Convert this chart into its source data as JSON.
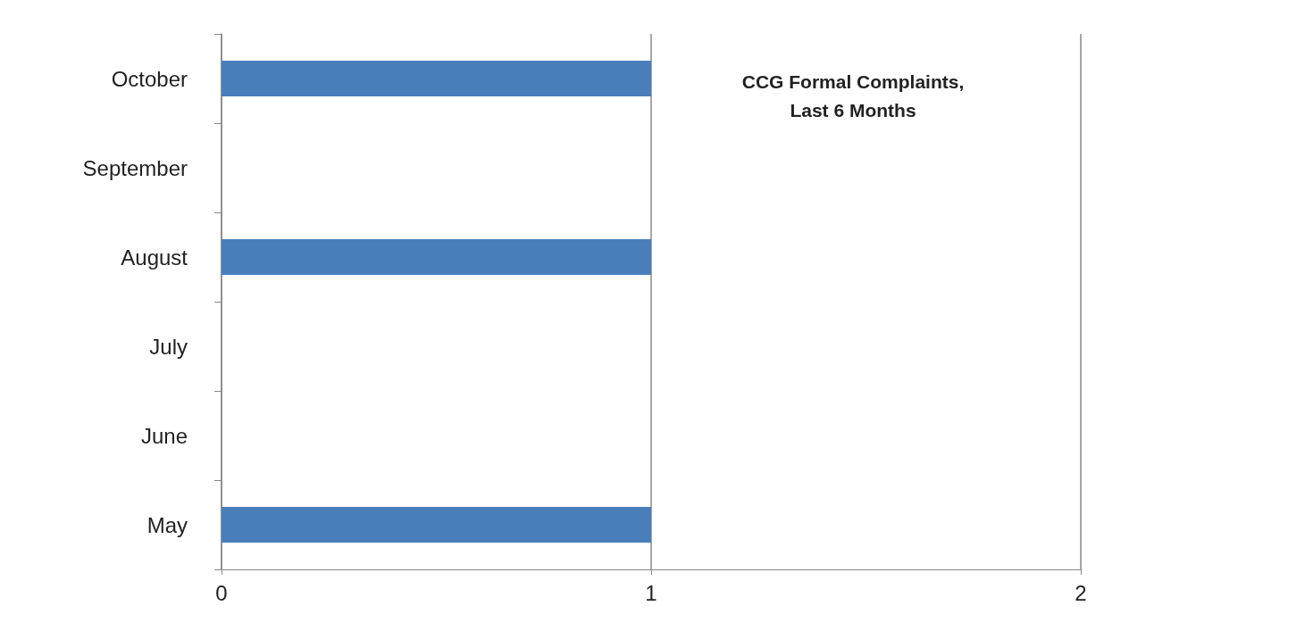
{
  "chart_data": {
    "type": "bar",
    "orientation": "horizontal",
    "title": "CCG Formal Complaints,\nLast 6 Months",
    "categories": [
      "October",
      "September",
      "August",
      "July",
      "June",
      "May"
    ],
    "values": [
      1,
      0,
      1,
      0,
      0,
      1
    ],
    "color": "#4a7ebb",
    "xlim": [
      0,
      2
    ],
    "xticks": [
      0,
      1,
      2
    ],
    "grid": "x"
  }
}
